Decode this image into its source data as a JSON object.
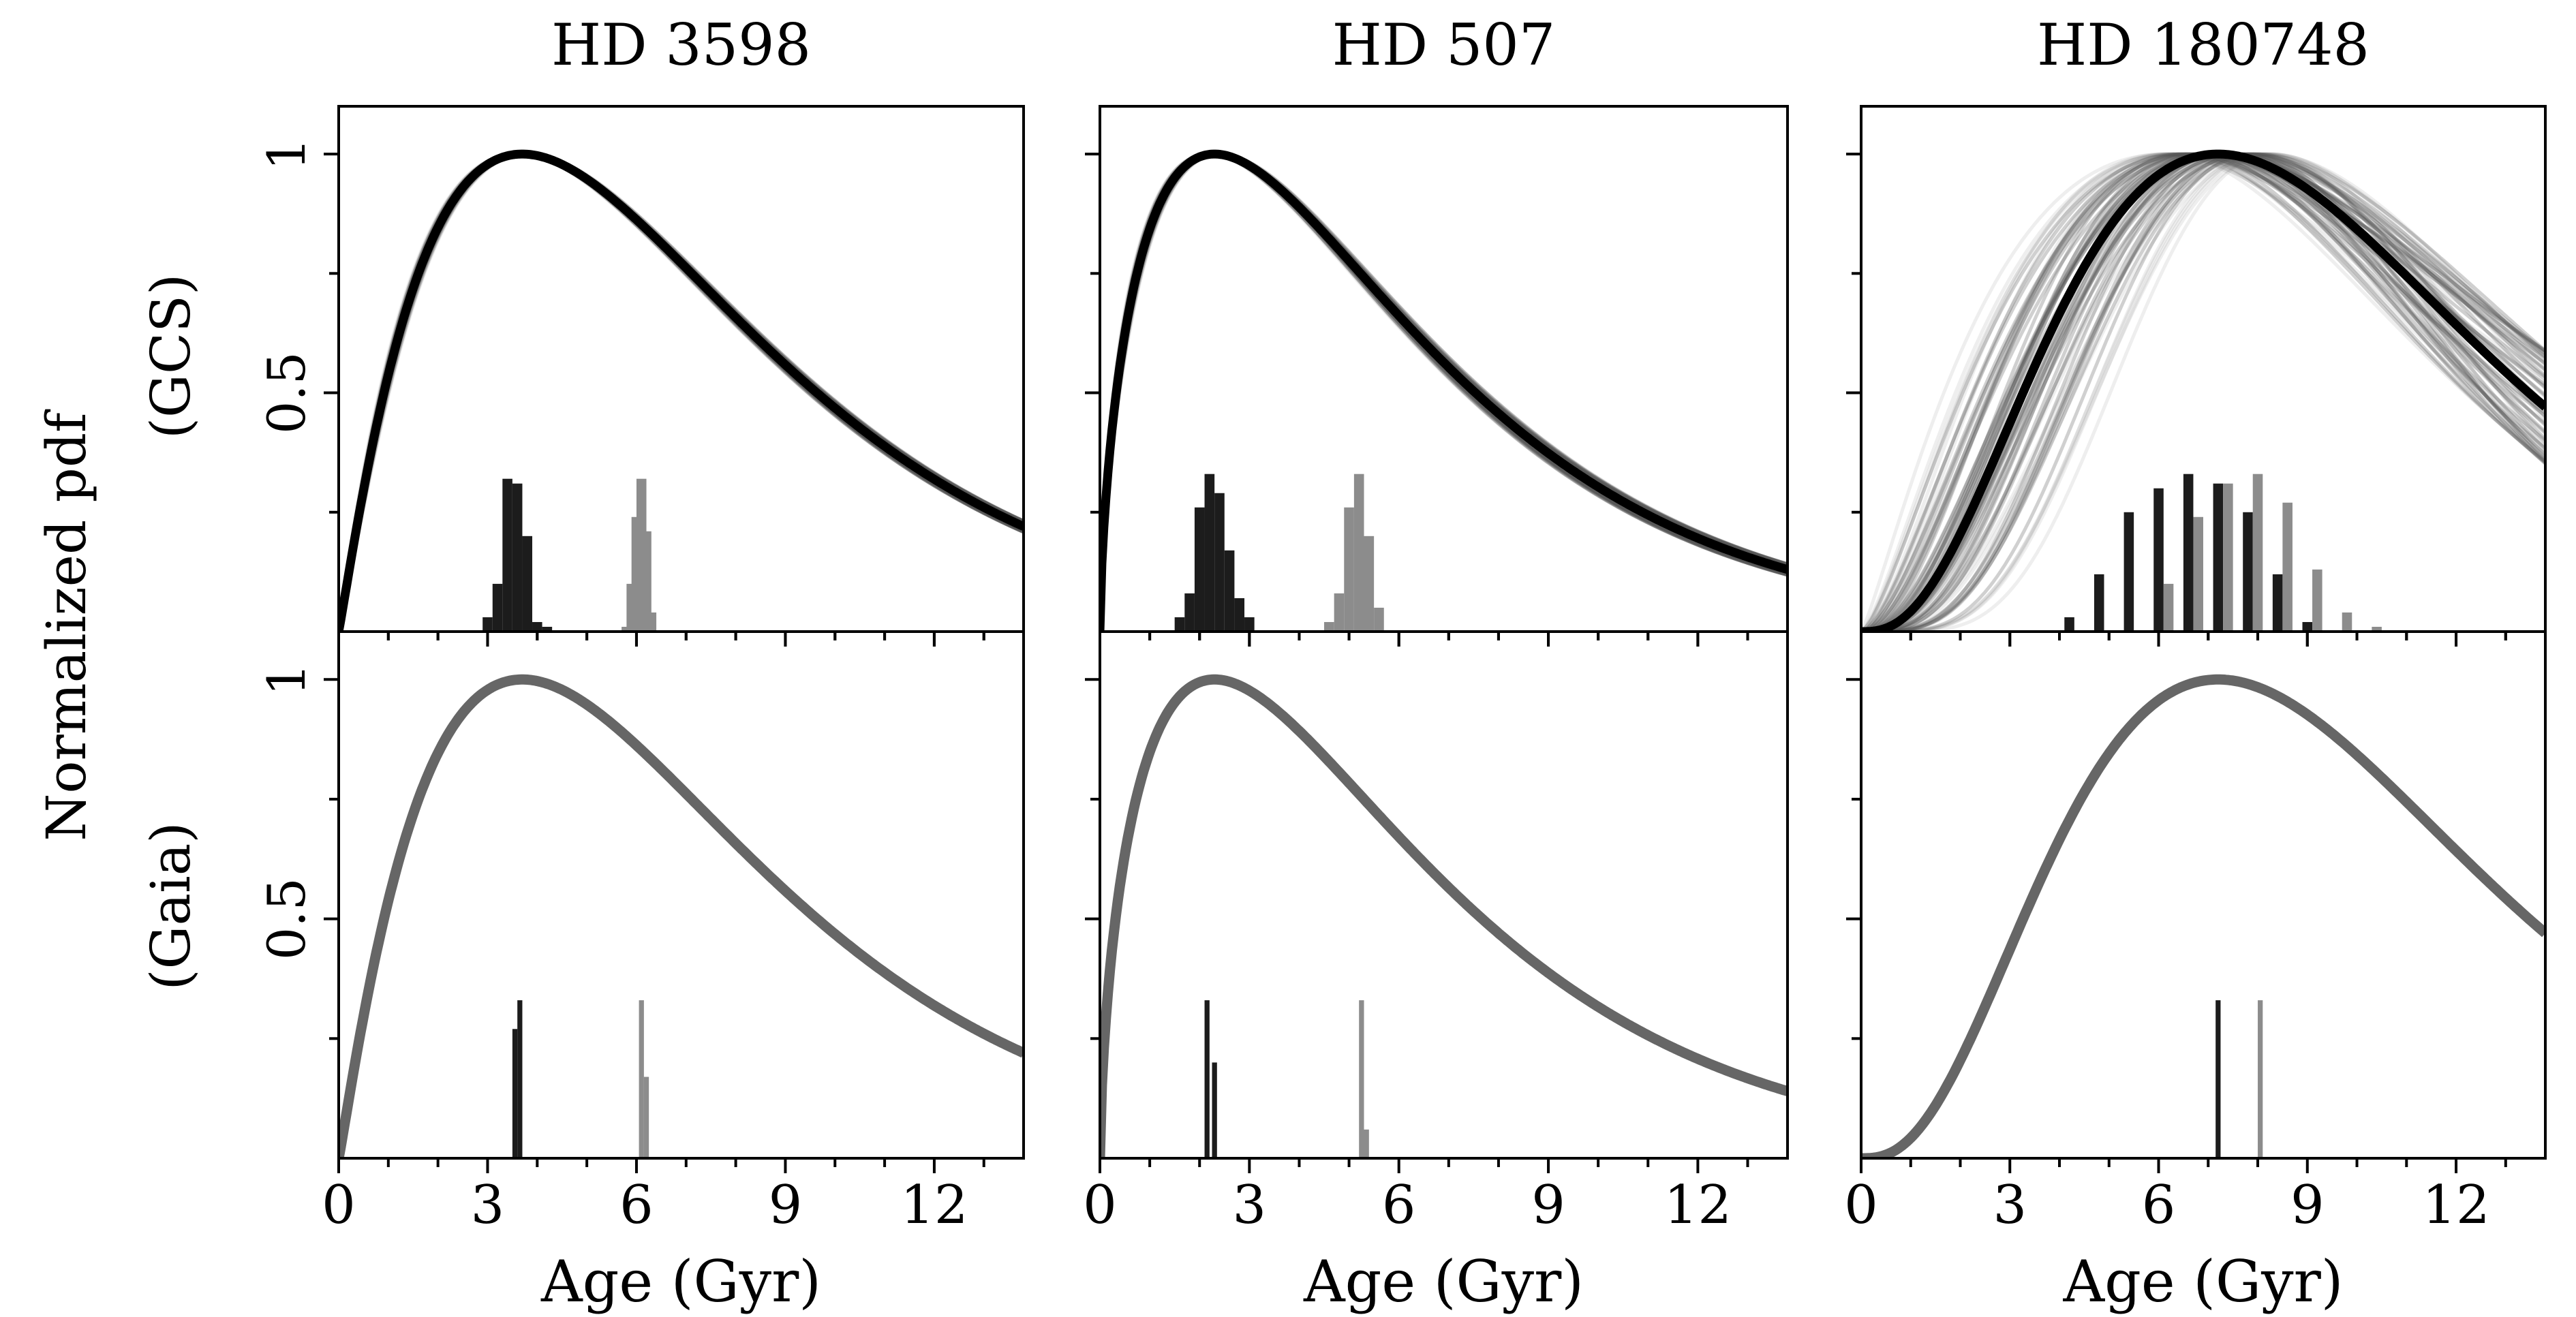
{
  "figure": {
    "ylabel_main": "Normalized pdf",
    "row_labels": [
      "(GCS)",
      "(Gaia)"
    ],
    "xlabel": "Age (Gyr)"
  },
  "chart_data": {
    "type": "line",
    "layout": "2 rows x 3 columns, shared x axis per column",
    "x_axis": {
      "label": "Age (Gyr)",
      "range": [
        0,
        13.8
      ],
      "ticks": [
        0,
        3,
        6,
        9,
        12
      ],
      "minor_step": 1
    },
    "y_axis": {
      "label": "Normalized pdf",
      "range": [
        0,
        1.1
      ],
      "ticks": [
        0.5,
        1
      ],
      "tick_labels": [
        "0.5",
        "1"
      ],
      "minor_ticks": [
        0.25,
        0.75
      ]
    },
    "panels": [
      {
        "title": "HD 3598",
        "gcs": {
          "peak_age": 3.7,
          "value_at_13_8": 0.22,
          "spread": 0.06,
          "hist_dark": [
            {
              "x": 3.4,
              "h": 0.32
            },
            {
              "x": 3.6,
              "h": 0.31
            },
            {
              "x": 3.8,
              "h": 0.2
            },
            {
              "x": 3.2,
              "h": 0.1
            },
            {
              "x": 4.0,
              "h": 0.02
            },
            {
              "x": 3.0,
              "h": 0.03
            },
            {
              "x": 4.2,
              "h": 0.01
            }
          ],
          "hist_light": [
            {
              "x": 6.1,
              "h": 0.32
            },
            {
              "x": 6.0,
              "h": 0.24
            },
            {
              "x": 6.2,
              "h": 0.21
            },
            {
              "x": 5.9,
              "h": 0.1
            },
            {
              "x": 6.3,
              "h": 0.04
            },
            {
              "x": 5.8,
              "h": 0.01
            }
          ]
        },
        "gaia": {
          "peak_age": 3.7,
          "value_at_13_8": 0.22,
          "hist_dark": [
            {
              "x": 3.55,
              "h": 0.27
            },
            {
              "x": 3.65,
              "h": 0.33
            }
          ],
          "hist_light": [
            {
              "x": 6.1,
              "h": 0.33
            },
            {
              "x": 6.2,
              "h": 0.17
            }
          ]
        }
      },
      {
        "title": "HD 507",
        "gcs": {
          "peak_age": 2.3,
          "value_at_13_8": 0.13,
          "spread": 0.1,
          "hist_dark": [
            {
              "x": 2.2,
              "h": 0.33
            },
            {
              "x": 2.0,
              "h": 0.26
            },
            {
              "x": 2.4,
              "h": 0.29
            },
            {
              "x": 2.6,
              "h": 0.17
            },
            {
              "x": 1.8,
              "h": 0.08
            },
            {
              "x": 2.8,
              "h": 0.07
            },
            {
              "x": 3.0,
              "h": 0.03
            },
            {
              "x": 1.6,
              "h": 0.03
            }
          ],
          "hist_light": [
            {
              "x": 5.2,
              "h": 0.33
            },
            {
              "x": 5.4,
              "h": 0.2
            },
            {
              "x": 5.0,
              "h": 0.26
            },
            {
              "x": 4.8,
              "h": 0.08
            },
            {
              "x": 5.6,
              "h": 0.05
            },
            {
              "x": 4.6,
              "h": 0.02
            }
          ]
        },
        "gaia": {
          "peak_age": 2.3,
          "value_at_13_8": 0.14,
          "hist_dark": [
            {
              "x": 2.15,
              "h": 0.33
            },
            {
              "x": 2.3,
              "h": 0.2
            }
          ],
          "hist_light": [
            {
              "x": 5.25,
              "h": 0.33
            },
            {
              "x": 5.35,
              "h": 0.06
            }
          ]
        }
      },
      {
        "title": "HD 180748",
        "gcs": {
          "peak_age": 7.2,
          "value_at_13_8": 0.47,
          "spread": 0.28,
          "hist_dark": [
            {
              "x": 6.6,
              "h": 0.33
            },
            {
              "x": 6.0,
              "h": 0.3
            },
            {
              "x": 7.2,
              "h": 0.31
            },
            {
              "x": 5.4,
              "h": 0.25
            },
            {
              "x": 7.8,
              "h": 0.25
            },
            {
              "x": 4.8,
              "h": 0.12
            },
            {
              "x": 8.4,
              "h": 0.12
            },
            {
              "x": 4.2,
              "h": 0.03
            },
            {
              "x": 9.0,
              "h": 0.02
            }
          ],
          "hist_light": [
            {
              "x": 8.0,
              "h": 0.33
            },
            {
              "x": 7.4,
              "h": 0.31
            },
            {
              "x": 8.6,
              "h": 0.27
            },
            {
              "x": 6.8,
              "h": 0.24
            },
            {
              "x": 9.2,
              "h": 0.13
            },
            {
              "x": 6.2,
              "h": 0.1
            },
            {
              "x": 9.8,
              "h": 0.04
            },
            {
              "x": 10.4,
              "h": 0.01
            }
          ]
        },
        "gaia": {
          "peak_age": 7.2,
          "value_at_13_8": 0.47,
          "hist_dark": [
            {
              "x": 7.2,
              "h": 0.33
            }
          ],
          "hist_light": [
            {
              "x": 8.05,
              "h": 0.33
            }
          ]
        }
      }
    ],
    "styles": {
      "gcs_best_fit_color": "#000000",
      "gcs_band_color": "#555555",
      "gaia_curve_color": "#666666",
      "hist_dark_color": "#1c1c1c",
      "hist_light_color": "#8c8c8c"
    }
  }
}
